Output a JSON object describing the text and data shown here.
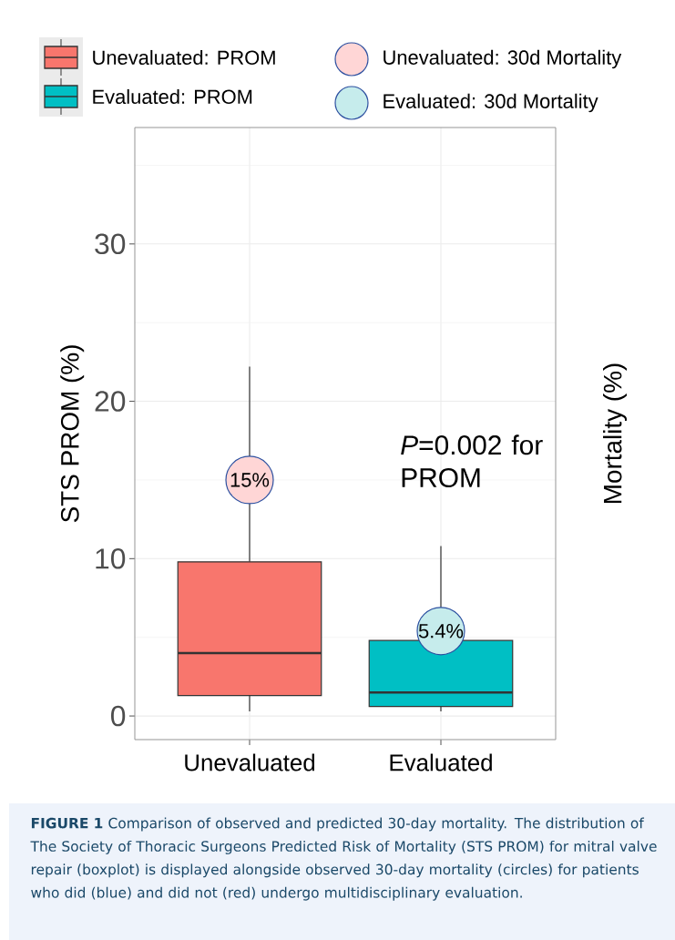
{
  "chart_data": {
    "type": "box",
    "categories": [
      "Unevaluated",
      "Evaluated"
    ],
    "ylabel": "STS PROM (%)",
    "y2label": "Mortality (%)",
    "ylim": [
      -1.5,
      37.4
    ],
    "yticks": [
      0,
      10,
      20,
      30
    ],
    "grid": true,
    "legend": "top",
    "series": [
      {
        "name": "Unevaluated: PROM",
        "color": "#f8766d",
        "boxes": [
          {
            "low": 0.3,
            "q1": 1.3,
            "median": 4.0,
            "q3": 9.8,
            "high": 22.2
          },
          null
        ]
      },
      {
        "name": "Evaluated: PROM",
        "color": "#00bfc4",
        "boxes": [
          null,
          {
            "low": 0.3,
            "q1": 0.6,
            "median": 1.5,
            "q3": 4.8,
            "high": 10.8
          }
        ]
      },
      {
        "name": "Unevaluated: 30d Mortality",
        "type": "scatter",
        "marker": "circle",
        "color": "#ffd6d6",
        "values": [
          15,
          null
        ],
        "value_labels": [
          "15%",
          null
        ]
      },
      {
        "name": "Evaluated: 30d Mortality",
        "type": "scatter",
        "marker": "circle",
        "color": "#c6ecec",
        "values": [
          null,
          5.4
        ],
        "value_labels": [
          null,
          "5.4%"
        ]
      }
    ],
    "annotations": [
      "*P*=0.002 for PROM",
      "**FIGURE 1** Comparison of observed and predicted 30-day mortality. The distribution of The Society of Thoracic Surgeons Predicted Risk of Mortality (STS PROM) for mitral valve repair (boxplot) is displayed alongside observed 30-day mortality (circles) for patients who did (blue) and did not (red) undergo multidisciplinary evaluation."
    ]
  }
}
